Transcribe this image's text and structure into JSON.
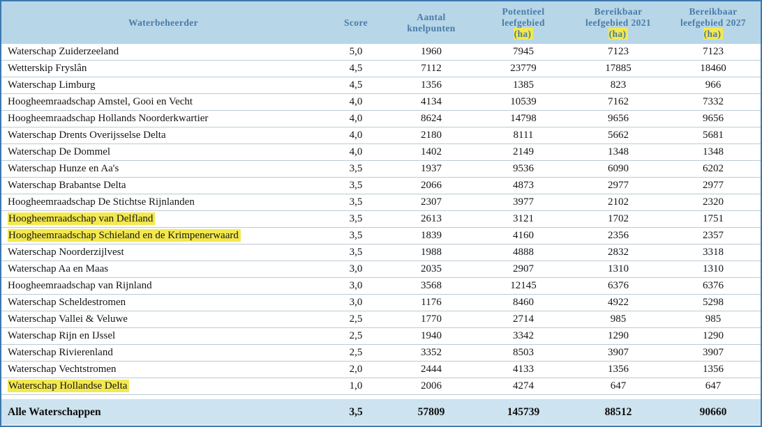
{
  "table": {
    "columns": [
      {
        "lines": [
          {
            "text": "Waterbeheerder",
            "hl": false
          }
        ]
      },
      {
        "lines": [
          {
            "text": "Score",
            "hl": false
          }
        ]
      },
      {
        "lines": [
          {
            "text": "Aantal",
            "hl": false
          },
          {
            "text": "knelpunten",
            "hl": false
          }
        ]
      },
      {
        "lines": [
          {
            "text": "Potentieel",
            "hl": false
          },
          {
            "text": "leefgebied",
            "hl": false
          },
          {
            "text": "(ha)",
            "hl": true
          }
        ]
      },
      {
        "lines": [
          {
            "text": "Bereikbaar",
            "hl": false
          },
          {
            "text": "leefgebied 2021",
            "hl": false
          },
          {
            "text": "(ha)",
            "hl": true
          }
        ]
      },
      {
        "lines": [
          {
            "text": "Bereikbaar",
            "hl": false
          },
          {
            "text": "leefgebied 2027",
            "hl": false
          },
          {
            "text": "(ha)",
            "hl": true
          }
        ]
      }
    ],
    "rows": [
      {
        "name": "Waterschap Zuiderzeeland",
        "score": "5,0",
        "knelpunten": "1960",
        "potentieel": "7945",
        "bereikbaar_2021": "7123",
        "bereikbaar_2027": "7123",
        "highlight": false
      },
      {
        "name": "Wetterskip Fryslân",
        "score": "4,5",
        "knelpunten": "7112",
        "potentieel": "23779",
        "bereikbaar_2021": "17885",
        "bereikbaar_2027": "18460",
        "highlight": false
      },
      {
        "name": "Waterschap Limburg",
        "score": "4,5",
        "knelpunten": "1356",
        "potentieel": "1385",
        "bereikbaar_2021": "823",
        "bereikbaar_2027": "966",
        "highlight": false
      },
      {
        "name": "Hoogheemraadschap Amstel, Gooi en Vecht",
        "score": "4,0",
        "knelpunten": "4134",
        "potentieel": "10539",
        "bereikbaar_2021": "7162",
        "bereikbaar_2027": "7332",
        "highlight": false
      },
      {
        "name": "Hoogheemraadschap Hollands Noorderkwartier",
        "score": "4,0",
        "knelpunten": "8624",
        "potentieel": "14798",
        "bereikbaar_2021": "9656",
        "bereikbaar_2027": "9656",
        "highlight": false
      },
      {
        "name": "Waterschap Drents Overijsselse Delta",
        "score": "4,0",
        "knelpunten": "2180",
        "potentieel": "8111",
        "bereikbaar_2021": "5662",
        "bereikbaar_2027": "5681",
        "highlight": false
      },
      {
        "name": "Waterschap De Dommel",
        "score": "4,0",
        "knelpunten": "1402",
        "potentieel": "2149",
        "bereikbaar_2021": "1348",
        "bereikbaar_2027": "1348",
        "highlight": false
      },
      {
        "name": "Waterschap Hunze en Aa's",
        "score": "3,5",
        "knelpunten": "1937",
        "potentieel": "9536",
        "bereikbaar_2021": "6090",
        "bereikbaar_2027": "6202",
        "highlight": false
      },
      {
        "name": "Waterschap Brabantse Delta",
        "score": "3,5",
        "knelpunten": "2066",
        "potentieel": "4873",
        "bereikbaar_2021": "2977",
        "bereikbaar_2027": "2977",
        "highlight": false
      },
      {
        "name": "Hoogheemraadschap De Stichtse Rijnlanden",
        "score": "3,5",
        "knelpunten": "2307",
        "potentieel": "3977",
        "bereikbaar_2021": "2102",
        "bereikbaar_2027": "2320",
        "highlight": false
      },
      {
        "name": "Hoogheemraadschap van Delfland",
        "score": "3,5",
        "knelpunten": "2613",
        "potentieel": "3121",
        "bereikbaar_2021": "1702",
        "bereikbaar_2027": "1751",
        "highlight": true
      },
      {
        "name": "Hoogheemraadschap Schieland en de Krimpenerwaard",
        "score": "3,5",
        "knelpunten": "1839",
        "potentieel": "4160",
        "bereikbaar_2021": "2356",
        "bereikbaar_2027": "2357",
        "highlight": true
      },
      {
        "name": "Waterschap Noorderzijlvest",
        "score": "3,5",
        "knelpunten": "1988",
        "potentieel": "4888",
        "bereikbaar_2021": "2832",
        "bereikbaar_2027": "3318",
        "highlight": false
      },
      {
        "name": "Waterschap Aa en Maas",
        "score": "3,0",
        "knelpunten": "2035",
        "potentieel": "2907",
        "bereikbaar_2021": "1310",
        "bereikbaar_2027": "1310",
        "highlight": false
      },
      {
        "name": "Hoogheemraadschap van Rijnland",
        "score": "3,0",
        "knelpunten": "3568",
        "potentieel": "12145",
        "bereikbaar_2021": "6376",
        "bereikbaar_2027": "6376",
        "highlight": false
      },
      {
        "name": "Waterschap Scheldestromen",
        "score": "3,0",
        "knelpunten": "1176",
        "potentieel": "8460",
        "bereikbaar_2021": "4922",
        "bereikbaar_2027": "5298",
        "highlight": false
      },
      {
        "name": "Waterschap Vallei & Veluwe",
        "score": "2,5",
        "knelpunten": "1770",
        "potentieel": "2714",
        "bereikbaar_2021": "985",
        "bereikbaar_2027": "985",
        "highlight": false
      },
      {
        "name": "Waterschap Rijn en IJssel",
        "score": "2,5",
        "knelpunten": "1940",
        "potentieel": "3342",
        "bereikbaar_2021": "1290",
        "bereikbaar_2027": "1290",
        "highlight": false
      },
      {
        "name": "Waterschap Rivierenland",
        "score": "2,5",
        "knelpunten": "3352",
        "potentieel": "8503",
        "bereikbaar_2021": "3907",
        "bereikbaar_2027": "3907",
        "highlight": false
      },
      {
        "name": "Waterschap Vechtstromen",
        "score": "2,0",
        "knelpunten": "2444",
        "potentieel": "4133",
        "bereikbaar_2021": "1356",
        "bereikbaar_2027": "1356",
        "highlight": false
      },
      {
        "name": "Waterschap Hollandse Delta",
        "score": "1,0",
        "knelpunten": "2006",
        "potentieel": "4274",
        "bereikbaar_2021": "647",
        "bereikbaar_2027": "647",
        "highlight": true
      }
    ],
    "footer": {
      "name": "Alle Waterschappen",
      "score": "3,5",
      "knelpunten": "57809",
      "potentieel": "145739",
      "bereikbaar_2021": "88512",
      "bereikbaar_2027": "90660"
    }
  },
  "colors": {
    "header_bg": "#b7d6e8",
    "header_text": "#4a7ca6",
    "footer_bg": "#cde3f0",
    "highlight_yellow": "#f3e84e",
    "outer_border": "#3c78ad",
    "row_line": "#b9cbd6"
  }
}
